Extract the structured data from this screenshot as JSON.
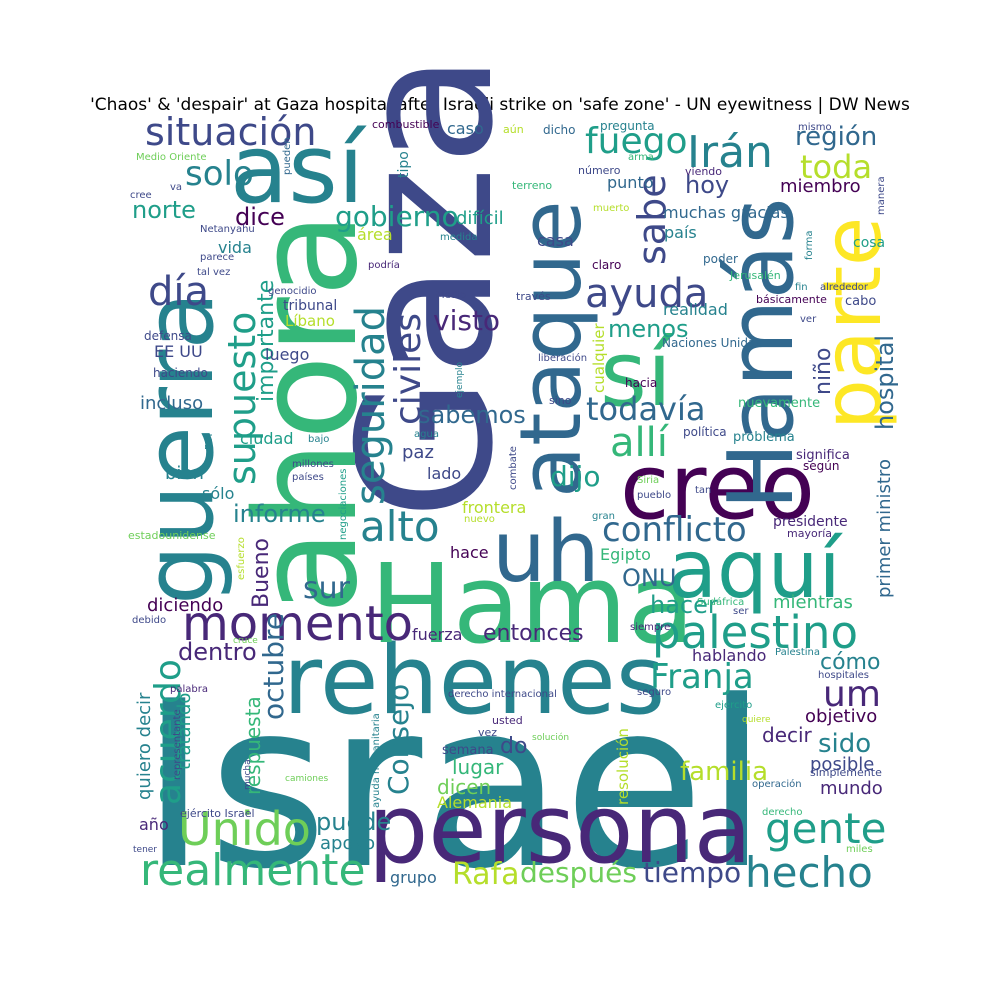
{
  "title": "'Chaos' & 'despair' at Gaza hospital after Israeli strike on 'safe zone' - UN eyewitness | DW News",
  "palette": [
    "#440154",
    "#482878",
    "#3e4989",
    "#31688e",
    "#26828e",
    "#1f9e89",
    "#35b779",
    "#6ece58",
    "#b5de2b",
    "#fde725"
  ],
  "words": [
    {
      "text": "Israel",
      "color": "#26828e"
    },
    {
      "text": "Gaza",
      "color": "#3e4989"
    },
    {
      "text": "ahora",
      "color": "#35b779"
    },
    {
      "text": "persona",
      "color": "#482878"
    },
    {
      "text": "rehenes",
      "color": "#26828e"
    },
    {
      "text": "Hama",
      "color": "#35b779"
    },
    {
      "text": "guerra",
      "color": "#26828e"
    },
    {
      "text": "ataque",
      "color": "#31688e"
    },
    {
      "text": "creo",
      "color": "#440154"
    },
    {
      "text": "así",
      "color": "#26828e"
    },
    {
      "text": "Hamás",
      "color": "#31688e"
    },
    {
      "text": "parte",
      "color": "#fde725"
    },
    {
      "text": "sí",
      "color": "#35b779"
    },
    {
      "text": "aquí",
      "color": "#1f9e89"
    },
    {
      "text": "uh",
      "color": "#31688e"
    },
    {
      "text": "momento",
      "color": "#482878"
    },
    {
      "text": "palestino",
      "color": "#1f9e89"
    },
    {
      "text": "Unido",
      "color": "#6ece58"
    },
    {
      "text": "realmente",
      "color": "#35b779"
    },
    {
      "text": "hecho",
      "color": "#26828e"
    },
    {
      "text": "gente",
      "color": "#1f9e89"
    },
    {
      "text": "alto",
      "color": "#26828e"
    },
    {
      "text": "conflicto",
      "color": "#31688e"
    },
    {
      "text": "situación",
      "color": "#3e4989"
    },
    {
      "text": "ayuda",
      "color": "#3e4989"
    },
    {
      "text": "Irán",
      "color": "#26828e"
    },
    {
      "text": "supuesto",
      "color": "#1f9e89"
    },
    {
      "text": "seguridad",
      "color": "#26828e"
    },
    {
      "text": "civiles",
      "color": "#3e4989"
    },
    {
      "text": "acuerdo",
      "color": "#1f9e89"
    },
    {
      "text": "sabe",
      "color": "#3e4989"
    },
    {
      "text": "fuego",
      "color": "#1f9e89"
    },
    {
      "text": "día",
      "color": "#3e4989"
    },
    {
      "text": "solo",
      "color": "#26828e"
    },
    {
      "text": "allí",
      "color": "#35b779"
    },
    {
      "text": "todavía",
      "color": "#31688e"
    },
    {
      "text": "gobierno",
      "color": "#1f9e89"
    },
    {
      "text": "toda",
      "color": "#b5de2b"
    },
    {
      "text": "región",
      "color": "#31688e"
    },
    {
      "text": "hospital",
      "color": "#31688e"
    },
    {
      "text": "Franja",
      "color": "#1f9e89"
    },
    {
      "text": "um",
      "color": "#482878"
    },
    {
      "text": "octubre",
      "color": "#31688e"
    },
    {
      "text": "sur",
      "color": "#31688e"
    },
    {
      "text": "Consejo",
      "color": "#26828e"
    },
    {
      "text": "Rafa",
      "color": "#b5de2b"
    },
    {
      "text": "después",
      "color": "#6ece58"
    },
    {
      "text": "tiempo",
      "color": "#3e4989"
    },
    {
      "text": "familia",
      "color": "#b5de2b"
    },
    {
      "text": "entonces",
      "color": "#482878"
    },
    {
      "text": "dijo",
      "color": "#1f9e89"
    },
    {
      "text": "visto",
      "color": "#482878"
    },
    {
      "text": "sabemos",
      "color": "#31688e"
    },
    {
      "text": "informe",
      "color": "#26828e"
    },
    {
      "text": "menos",
      "color": "#1f9e89"
    },
    {
      "text": "hacer",
      "color": "#1f9e89"
    },
    {
      "text": "ONU",
      "color": "#31688e"
    },
    {
      "text": "dentro",
      "color": "#482878"
    },
    {
      "text": "sido",
      "color": "#26828e"
    },
    {
      "text": "puede",
      "color": "#26828e"
    },
    {
      "text": "norte",
      "color": "#1f9e89"
    },
    {
      "text": "dice",
      "color": "#440154"
    },
    {
      "text": "hoy",
      "color": "#3e4989"
    },
    {
      "text": "Bueno",
      "color": "#482878"
    },
    {
      "text": "importante",
      "color": "#1f9e89"
    },
    {
      "text": "niño",
      "color": "#3e4989"
    },
    {
      "text": "cómo",
      "color": "#26828e"
    },
    {
      "text": "diciendo",
      "color": "#440154"
    },
    {
      "text": "respuesta",
      "color": "#35b779"
    },
    {
      "text": "incluso",
      "color": "#31688e"
    },
    {
      "text": "primer ministro",
      "color": "#31688e"
    },
    {
      "text": "muchas gracias",
      "color": "#31688e"
    },
    {
      "text": "país",
      "color": "#26828e"
    },
    {
      "text": "difícil",
      "color": "#1f9e89"
    },
    {
      "text": "mientras",
      "color": "#35b779"
    },
    {
      "text": "miembro",
      "color": "#440154"
    },
    {
      "text": "lugar",
      "color": "#35b779"
    },
    {
      "text": "dicen",
      "color": "#6ece58"
    },
    {
      "text": "Alemania",
      "color": "#b5de2b"
    },
    {
      "text": "quiero decir",
      "color": "#26828e"
    },
    {
      "text": "tratando",
      "color": "#1f9e89"
    },
    {
      "text": "decir",
      "color": "#482878"
    },
    {
      "text": "objetivo",
      "color": "#440154"
    },
    {
      "text": "posible",
      "color": "#3e4989"
    },
    {
      "text": "mundo",
      "color": "#482878"
    },
    {
      "text": "fuerza",
      "color": "#482878"
    },
    {
      "text": "hablando",
      "color": "#482878"
    },
    {
      "text": "do",
      "color": "#3e4989"
    },
    {
      "text": "apoyo",
      "color": "#26828e"
    },
    {
      "text": "grupo",
      "color": "#31688e"
    },
    {
      "text": "frontera",
      "color": "#b5de2b"
    },
    {
      "text": "hace",
      "color": "#440154"
    },
    {
      "text": "Egipto",
      "color": "#35b779"
    },
    {
      "text": "paz",
      "color": "#3e4989"
    },
    {
      "text": "lado",
      "color": "#3e4989"
    },
    {
      "text": "bien",
      "color": "#26828e"
    },
    {
      "text": "sólo",
      "color": "#26828e"
    },
    {
      "text": "ciudad",
      "color": "#1f9e89"
    },
    {
      "text": "luego",
      "color": "#3e4989"
    },
    {
      "text": "EE UU",
      "color": "#3e4989"
    },
    {
      "text": "vida",
      "color": "#26828e"
    },
    {
      "text": "casa",
      "color": "#3e4989"
    },
    {
      "text": "área",
      "color": "#b5de2b"
    },
    {
      "text": "realidad",
      "color": "#26828e"
    },
    {
      "text": "Líbano",
      "color": "#b5de2b"
    },
    {
      "text": "tribunal",
      "color": "#3e4989"
    },
    {
      "text": "punto",
      "color": "#31688e"
    },
    {
      "text": "resolución",
      "color": "#b5de2b"
    },
    {
      "text": "cualquier",
      "color": "#b5de2b"
    },
    {
      "text": "semana",
      "color": "#3e4989"
    },
    {
      "text": "año",
      "color": "#482878"
    },
    {
      "text": "caso",
      "color": "#31688e"
    },
    {
      "text": "cosa",
      "color": "#1f9e89"
    },
    {
      "text": "cabo",
      "color": "#3e4989"
    },
    {
      "text": "presidente",
      "color": "#482878"
    },
    {
      "text": "significa",
      "color": "#482878"
    },
    {
      "text": "problema",
      "color": "#26828e"
    },
    {
      "text": "nuevamente",
      "color": "#35b779"
    },
    {
      "text": "hacia",
      "color": "#440154"
    },
    {
      "text": "Naciones Unidas",
      "color": "#31688e"
    },
    {
      "text": "poder",
      "color": "#31688e"
    },
    {
      "text": "claro",
      "color": "#440154"
    },
    {
      "text": "Jerusalén",
      "color": "#35b779"
    },
    {
      "text": "básicamente",
      "color": "#440154"
    },
    {
      "text": "alrededor",
      "color": "#3e4989"
    },
    {
      "text": "según",
      "color": "#440154"
    },
    {
      "text": "mayoría",
      "color": "#482878"
    },
    {
      "text": "política",
      "color": "#3e4989"
    },
    {
      "text": "haciendo",
      "color": "#3e4989"
    },
    {
      "text": "defensa",
      "color": "#3e4989"
    },
    {
      "text": "tipo",
      "color": "#26828e"
    },
    {
      "text": "combustible",
      "color": "#440154"
    },
    {
      "text": "aún",
      "color": "#b5de2b"
    },
    {
      "text": "dicho",
      "color": "#31688e"
    },
    {
      "text": "pregunta",
      "color": "#26828e"
    },
    {
      "text": "mismo",
      "color": "#3e4989"
    },
    {
      "text": "arma",
      "color": "#35b779"
    },
    {
      "text": "viendo",
      "color": "#482878"
    },
    {
      "text": "número",
      "color": "#3e4989"
    },
    {
      "text": "terreno",
      "color": "#35b779"
    },
    {
      "text": "muerto",
      "color": "#b5de2b"
    },
    {
      "text": "manera",
      "color": "#3e4989"
    },
    {
      "text": "forma",
      "color": "#26828e"
    },
    {
      "text": "fin",
      "color": "#26828e"
    },
    {
      "text": "ver",
      "color": "#3e4989"
    },
    {
      "text": "Medio Oriente",
      "color": "#6ece58"
    },
    {
      "text": "cree",
      "color": "#3e4989"
    },
    {
      "text": "va",
      "color": "#3e4989"
    },
    {
      "text": "pueden",
      "color": "#31688e"
    },
    {
      "text": "Netanyahu",
      "color": "#3e4989"
    },
    {
      "text": "parece",
      "color": "#3e4989"
    },
    {
      "text": "tal vez",
      "color": "#3e4989"
    },
    {
      "text": "medida",
      "color": "#26828e"
    },
    {
      "text": "podría",
      "color": "#482878"
    },
    {
      "text": "genocidio",
      "color": "#3e4989"
    },
    {
      "text": "Medio",
      "color": "#3e4989"
    },
    {
      "text": "través",
      "color": "#3e4989"
    },
    {
      "text": "liberación",
      "color": "#3e4989"
    },
    {
      "text": "ejemplo",
      "color": "#26828e"
    },
    {
      "text": "sino",
      "color": "#3e4989"
    },
    {
      "text": "agua",
      "color": "#26828e"
    },
    {
      "text": "bajo",
      "color": "#26828e"
    },
    {
      "text": "FDI",
      "color": "#26828e"
    },
    {
      "text": "millones",
      "color": "#3e4989"
    },
    {
      "text": "países",
      "color": "#3e4989"
    },
    {
      "text": "negociaciones",
      "color": "#1f9e89"
    },
    {
      "text": "combate",
      "color": "#3e4989"
    },
    {
      "text": "Siria",
      "color": "#6ece58"
    },
    {
      "text": "pueblo",
      "color": "#3e4989"
    },
    {
      "text": "tan",
      "color": "#3e4989"
    },
    {
      "text": "gran",
      "color": "#26828e"
    },
    {
      "text": "nuevo",
      "color": "#b5de2b"
    },
    {
      "text": "esfuerzo",
      "color": "#b5de2b"
    },
    {
      "text": "estadounidense",
      "color": "#6ece58"
    },
    {
      "text": "Sudáfrica",
      "color": "#35b779"
    },
    {
      "text": "ser",
      "color": "#3e4989"
    },
    {
      "text": "siempre",
      "color": "#482878"
    },
    {
      "text": "debido",
      "color": "#3e4989"
    },
    {
      "text": "cruce",
      "color": "#6ece58"
    },
    {
      "text": "Palestina",
      "color": "#26828e"
    },
    {
      "text": "hospitales",
      "color": "#3e4989"
    },
    {
      "text": "palabra",
      "color": "#482878"
    },
    {
      "text": "derecho internacional",
      "color": "#3e4989"
    },
    {
      "text": "seguro",
      "color": "#3e4989"
    },
    {
      "text": "ejército",
      "color": "#1f9e89"
    },
    {
      "text": "quiere",
      "color": "#b5de2b"
    },
    {
      "text": "representante",
      "color": "#3e4989"
    },
    {
      "text": "mucha",
      "color": "#3e4989"
    },
    {
      "text": "ayuda humanitaria",
      "color": "#26828e"
    },
    {
      "text": "usted",
      "color": "#482878"
    },
    {
      "text": "vez",
      "color": "#3e4989"
    },
    {
      "text": "solución",
      "color": "#6ece58"
    },
    {
      "text": "simplemente",
      "color": "#3e4989"
    },
    {
      "text": "operación",
      "color": "#31688e"
    },
    {
      "text": "camiones",
      "color": "#6ece58"
    },
    {
      "text": "ejército Israel",
      "color": "#3e4989"
    },
    {
      "text": "derecho",
      "color": "#35b779"
    },
    {
      "text": "tener",
      "color": "#3e4989"
    },
    {
      "text": "miles",
      "color": "#6ece58"
    }
  ]
}
